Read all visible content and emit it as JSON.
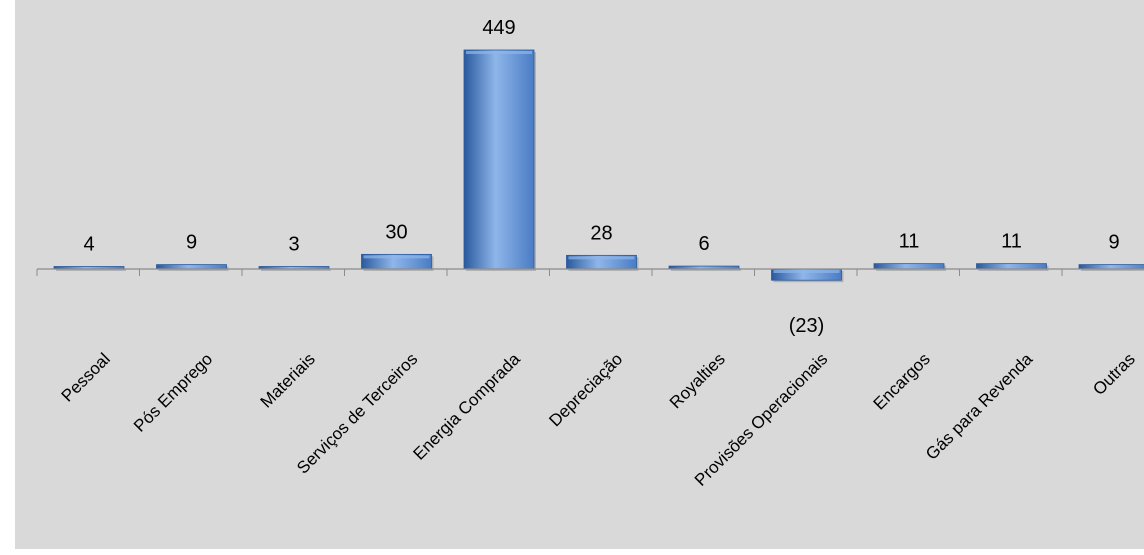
{
  "chart_data": {
    "type": "bar",
    "categories": [
      "Pessoal",
      "Pós Emprego",
      "Materiais",
      "Serviços de Terceiros",
      "Energia Comprada",
      "Depreciação",
      "Royalties",
      "Provisões Operacionais",
      "Encargos",
      "Gás para Revenda",
      "Outras"
    ],
    "values": [
      4,
      9,
      3,
      30,
      449,
      28,
      6,
      -23,
      11,
      11,
      9
    ],
    "data_labels": [
      "4",
      "9",
      "3",
      "30",
      "449",
      "28",
      "6",
      "(23)",
      "11",
      "11",
      "9"
    ],
    "title": "",
    "xlabel": "",
    "ylabel": "",
    "ylim": [
      -23,
      449
    ],
    "grid": false,
    "legend": "none",
    "colors": {
      "bar": "#4a7cc4",
      "bar_light": "#8fb6ea",
      "bar_dark": "#2a5a9e",
      "background": "#d9d9d9",
      "axis": "#8c8c8c"
    }
  }
}
